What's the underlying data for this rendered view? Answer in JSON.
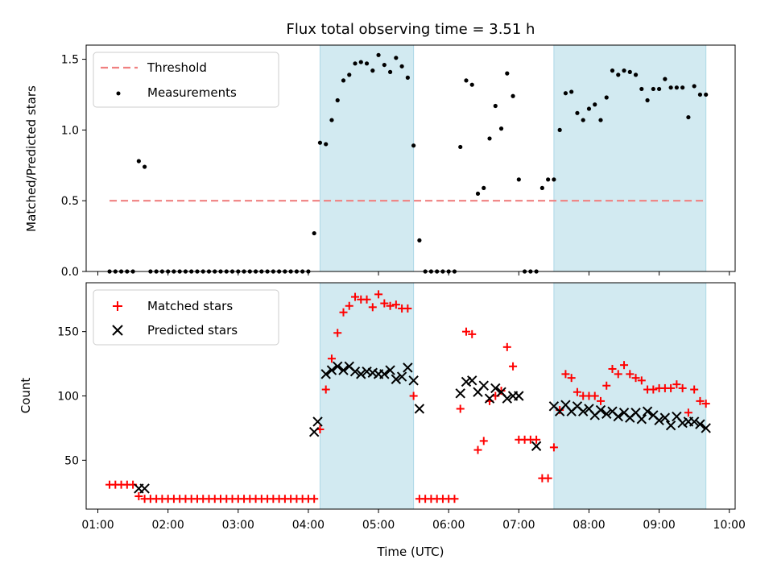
{
  "title": "Flux total observing time = 3.51 h",
  "colors": {
    "threshold": "#f08080",
    "matched": "#ff0000",
    "predicted": "#000000",
    "shade": "#add8e6"
  },
  "shaded_intervals": [
    {
      "start": "04:10",
      "end": "05:30"
    },
    {
      "start": "07:30",
      "end": "09:40"
    }
  ],
  "chart_data": [
    {
      "type": "scatter",
      "ylabel": "Matched/Predicted stars",
      "ylim": [
        0,
        1.6
      ],
      "yticks": [
        "0.0",
        "0.5",
        "1.0",
        "1.5"
      ],
      "legend_position": "top-left",
      "legend": [
        "Threshold",
        "Measurements"
      ],
      "threshold": {
        "name": "Threshold",
        "y": 0.5,
        "x_range": [
          "01:10",
          "09:40"
        ]
      },
      "series": [
        {
          "name": "Measurements",
          "x": [
            "01:10",
            "01:15",
            "01:20",
            "01:25",
            "01:30",
            "01:35",
            "01:40",
            "01:45",
            "01:50",
            "01:55",
            "02:00",
            "02:05",
            "02:10",
            "02:15",
            "02:20",
            "02:25",
            "02:30",
            "02:35",
            "02:40",
            "02:45",
            "02:50",
            "02:55",
            "03:00",
            "03:05",
            "03:10",
            "03:15",
            "03:20",
            "03:25",
            "03:30",
            "03:35",
            "03:40",
            "03:45",
            "03:50",
            "03:55",
            "04:00",
            "04:05",
            "04:10",
            "04:15",
            "04:20",
            "04:25",
            "04:30",
            "04:35",
            "04:40",
            "04:45",
            "04:50",
            "04:55",
            "05:00",
            "05:05",
            "05:10",
            "05:15",
            "05:20",
            "05:25",
            "05:30",
            "05:35",
            "05:40",
            "05:45",
            "05:50",
            "05:55",
            "06:00",
            "06:05",
            "06:10",
            "06:15",
            "06:20",
            "06:25",
            "06:30",
            "06:35",
            "06:40",
            "06:45",
            "06:50",
            "06:55",
            "07:00",
            "07:05",
            "07:10",
            "07:15",
            "07:20",
            "07:25",
            "07:30",
            "07:35",
            "07:40",
            "07:45",
            "07:50",
            "07:55",
            "08:00",
            "08:05",
            "08:10",
            "08:15",
            "08:20",
            "08:25",
            "08:30",
            "08:35",
            "08:40",
            "08:45",
            "08:50",
            "08:55",
            "09:00",
            "09:05",
            "09:10",
            "09:15",
            "09:20",
            "09:25",
            "09:30",
            "09:35",
            "09:40"
          ],
          "y": [
            0,
            0,
            0,
            0,
            0,
            0.78,
            0.74,
            0,
            0,
            0,
            0,
            0,
            0,
            0,
            0,
            0,
            0,
            0,
            0,
            0,
            0,
            0,
            0,
            0,
            0,
            0,
            0,
            0,
            0,
            0,
            0,
            0,
            0,
            0,
            0,
            0.27,
            0.91,
            0.9,
            1.07,
            1.21,
            1.35,
            1.39,
            1.47,
            1.48,
            1.47,
            1.42,
            1.53,
            1.46,
            1.41,
            1.51,
            1.45,
            1.37,
            0.89,
            0.22,
            0,
            0,
            0,
            0,
            0,
            0,
            0.88,
            1.35,
            1.32,
            0.55,
            0.59,
            0.94,
            1.17,
            1.01,
            1.4,
            1.24,
            0.65,
            0,
            0,
            0,
            0.59,
            0.65,
            0.65,
            1.0,
            1.26,
            1.27,
            1.12,
            1.07,
            1.15,
            1.18,
            1.07,
            1.23,
            1.42,
            1.39,
            1.42,
            1.41,
            1.39,
            1.29,
            1.21,
            1.29,
            1.29,
            1.36,
            1.3,
            1.3,
            1.3,
            1.09,
            1.31,
            1.25,
            1.25
          ]
        }
      ]
    },
    {
      "type": "scatter",
      "xlabel": "Time (UTC)",
      "ylabel": "Count",
      "ylim": [
        12,
        188
      ],
      "yticks": [
        "50",
        "100",
        "150"
      ],
      "xticks": [
        "01:00",
        "02:00",
        "03:00",
        "04:00",
        "05:00",
        "06:00",
        "07:00",
        "08:00",
        "09:00",
        "10:00"
      ],
      "legend_position": "top-left",
      "legend": [
        "Matched stars",
        "Predicted stars"
      ],
      "series": [
        {
          "name": "Matched stars",
          "marker": "+",
          "x": [
            "01:10",
            "01:15",
            "01:20",
            "01:25",
            "01:30",
            "01:35",
            "01:40",
            "01:45",
            "01:50",
            "01:55",
            "02:00",
            "02:05",
            "02:10",
            "02:15",
            "02:20",
            "02:25",
            "02:30",
            "02:35",
            "02:40",
            "02:45",
            "02:50",
            "02:55",
            "03:00",
            "03:05",
            "03:10",
            "03:15",
            "03:20",
            "03:25",
            "03:30",
            "03:35",
            "03:40",
            "03:45",
            "03:50",
            "03:55",
            "04:00",
            "04:05",
            "04:10",
            "04:15",
            "04:20",
            "04:25",
            "04:30",
            "04:35",
            "04:40",
            "04:45",
            "04:50",
            "04:55",
            "05:00",
            "05:05",
            "05:10",
            "05:15",
            "05:20",
            "05:25",
            "05:30",
            "05:35",
            "05:40",
            "05:45",
            "05:50",
            "05:55",
            "06:00",
            "06:05",
            "06:10",
            "06:15",
            "06:20",
            "06:25",
            "06:30",
            "06:35",
            "06:40",
            "06:45",
            "06:50",
            "06:55",
            "07:00",
            "07:05",
            "07:10",
            "07:15",
            "07:20",
            "07:25",
            "07:30",
            "07:35",
            "07:40",
            "07:45",
            "07:50",
            "07:55",
            "08:00",
            "08:05",
            "08:10",
            "08:15",
            "08:20",
            "08:25",
            "08:30",
            "08:35",
            "08:40",
            "08:45",
            "08:50",
            "08:55",
            "09:00",
            "09:05",
            "09:10",
            "09:15",
            "09:20",
            "09:25",
            "09:30",
            "09:35",
            "09:40"
          ],
          "y": [
            31,
            31,
            31,
            31,
            31,
            22,
            20,
            20,
            20,
            20,
            20,
            20,
            20,
            20,
            20,
            20,
            20,
            20,
            20,
            20,
            20,
            20,
            20,
            20,
            20,
            20,
            20,
            20,
            20,
            20,
            20,
            20,
            20,
            20,
            20,
            20,
            74,
            105,
            129,
            149,
            165,
            170,
            177,
            175,
            175,
            169,
            179,
            172,
            170,
            171,
            168,
            168,
            100,
            20,
            20,
            20,
            20,
            20,
            20,
            20,
            90,
            150,
            148,
            58,
            65,
            96,
            100,
            104,
            138,
            123,
            66,
            66,
            66,
            66,
            36,
            36,
            60,
            89,
            117,
            114,
            103,
            100,
            100,
            100,
            96,
            108,
            121,
            117,
            124,
            117,
            114,
            112,
            105,
            105,
            106,
            106,
            106,
            109,
            106,
            87,
            105,
            96,
            94
          ]
        },
        {
          "name": "Predicted stars",
          "marker": "x",
          "x": [
            "04:05",
            "04:08",
            "04:15",
            "04:20",
            "04:25",
            "04:30",
            "04:35",
            "04:40",
            "04:45",
            "04:50",
            "04:55",
            "05:00",
            "05:05",
            "05:10",
            "05:15",
            "05:20",
            "05:25",
            "05:30",
            "05:35",
            "01:35",
            "01:40",
            "06:10",
            "06:15",
            "06:20",
            "06:25",
            "06:30",
            "06:35",
            "06:40",
            "06:45",
            "06:50",
            "06:55",
            "07:00",
            "07:15",
            "07:30",
            "07:35",
            "07:40",
            "07:45",
            "07:50",
            "07:55",
            "08:00",
            "08:05",
            "08:10",
            "08:15",
            "08:20",
            "08:25",
            "08:30",
            "08:35",
            "08:40",
            "08:45",
            "08:50",
            "08:55",
            "09:00",
            "09:05",
            "09:10",
            "09:15",
            "09:20",
            "09:25",
            "09:30",
            "09:35",
            "09:40"
          ],
          "y": [
            72,
            80,
            117,
            120,
            123,
            120,
            123,
            119,
            117,
            119,
            118,
            117,
            117,
            120,
            113,
            115,
            122,
            112,
            90,
            28,
            28,
            102,
            111,
            112,
            103,
            108,
            98,
            106,
            103,
            98,
            100,
            100,
            61,
            92,
            88,
            93,
            88,
            92,
            88,
            90,
            85,
            89,
            86,
            88,
            84,
            87,
            83,
            87,
            82,
            88,
            85,
            81,
            83,
            77,
            84,
            79,
            80,
            80,
            78,
            75
          ]
        }
      ]
    }
  ]
}
